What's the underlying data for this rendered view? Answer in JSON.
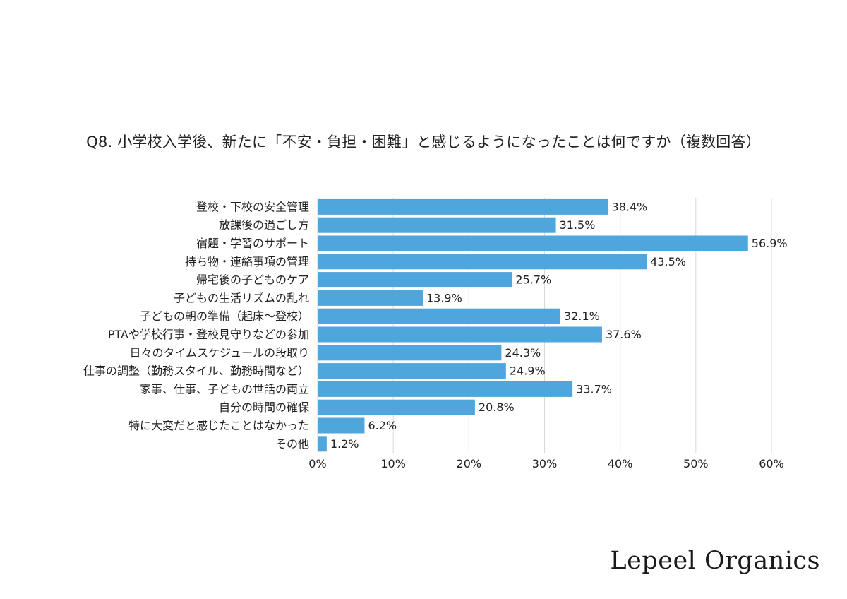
{
  "chart_data": {
    "type": "bar",
    "orientation": "horizontal",
    "title": "Q8. 小学校入学後、新たに「不安・負担・困難」と感じるようになったことは何ですか（複数回答）",
    "categories": [
      "登校・下校の安全管理",
      "放課後の過ごし方",
      "宿題・学習のサポート",
      "持ち物・連絡事項の管理",
      "帰宅後の子どものケア",
      "子どもの生活リズムの乱れ",
      "子どもの朝の準備（起床〜登校）",
      "PTAや学校行事・登校見守りなどの参加",
      "日々のタイムスケジュールの段取り",
      "仕事の調整（勤務スタイル、勤務時間など）",
      "家事、仕事、子どもの世話の両立",
      "自分の時間の確保",
      "特に大変だと感じたことはなかった",
      "その他"
    ],
    "values": [
      38.4,
      31.5,
      56.9,
      43.5,
      25.7,
      13.9,
      32.1,
      37.6,
      24.3,
      24.9,
      33.7,
      20.8,
      6.2,
      1.2
    ],
    "value_labels": [
      "38.4%",
      "31.5%",
      "56.9%",
      "43.5%",
      "25.7%",
      "13.9%",
      "32.1%",
      "37.6%",
      "24.3%",
      "24.9%",
      "33.7%",
      "20.8%",
      "6.2%",
      "1.2%"
    ],
    "xlim": [
      0,
      60
    ],
    "xticks": [
      0,
      10,
      20,
      30,
      40,
      50,
      60
    ],
    "xtick_labels": [
      "0%",
      "10%",
      "20%",
      "30%",
      "40%",
      "50%",
      "60%"
    ],
    "grid": "vertical",
    "bar_color": "#4ea6dc",
    "xlabel": "",
    "ylabel": ""
  },
  "brand": "Lepeel Organics"
}
